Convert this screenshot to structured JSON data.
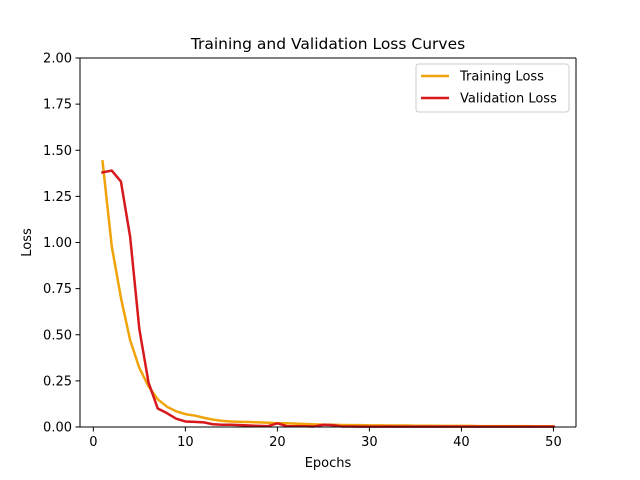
{
  "chart_data": {
    "type": "line",
    "title": "Training and Validation Loss Curves",
    "xlabel": "Epochs",
    "ylabel": "Loss",
    "xlim": [
      -1.45,
      52.45
    ],
    "ylim": [
      0,
      2.0
    ],
    "xticks": [
      0,
      10,
      20,
      30,
      40,
      50
    ],
    "xtick_labels": [
      "0",
      "10",
      "20",
      "30",
      "40",
      "50"
    ],
    "yticks": [
      0,
      0.25,
      0.5,
      0.75,
      1.0,
      1.25,
      1.5,
      1.75,
      2.0
    ],
    "ytick_labels": [
      "0.00",
      "0.25",
      "0.50",
      "0.75",
      "1.00",
      "1.25",
      "1.50",
      "1.75",
      "2.00"
    ],
    "grid": false,
    "legend_position": "top-right",
    "x": [
      1,
      2,
      3,
      4,
      5,
      6,
      7,
      8,
      9,
      10,
      11,
      12,
      13,
      14,
      15,
      16,
      17,
      18,
      19,
      20,
      21,
      22,
      23,
      24,
      25,
      26,
      27,
      28,
      29,
      30,
      31,
      32,
      33,
      34,
      35,
      36,
      37,
      38,
      39,
      40,
      41,
      42,
      43,
      44,
      45,
      46,
      47,
      48,
      49,
      50
    ],
    "series": [
      {
        "name": "Training Loss",
        "color": "#f0a30a",
        "values": [
          1.44,
          0.98,
          0.7,
          0.47,
          0.32,
          0.22,
          0.15,
          0.11,
          0.085,
          0.07,
          0.062,
          0.05,
          0.04,
          0.033,
          0.03,
          0.028,
          0.027,
          0.025,
          0.023,
          0.02,
          0.02,
          0.018,
          0.016,
          0.014,
          0.013,
          0.012,
          0.011,
          0.01,
          0.01,
          0.009,
          0.009,
          0.008,
          0.008,
          0.008,
          0.007,
          0.007,
          0.007,
          0.006,
          0.006,
          0.006,
          0.006,
          0.005,
          0.005,
          0.005,
          0.005,
          0.005,
          0.005,
          0.004,
          0.004,
          0.004
        ]
      },
      {
        "name": "Validation Loss",
        "color": "#d7191c",
        "values": [
          1.38,
          1.39,
          1.33,
          1.03,
          0.53,
          0.24,
          0.1,
          0.075,
          0.045,
          0.03,
          0.028,
          0.025,
          0.015,
          0.012,
          0.012,
          0.01,
          0.008,
          0.006,
          0.005,
          0.02,
          0.005,
          0.004,
          0.004,
          0.003,
          0.012,
          0.01,
          0.003,
          0.003,
          0.002,
          0.002,
          0.002,
          0.003,
          0.002,
          0.002,
          0.002,
          0.002,
          0.002,
          0.002,
          0.002,
          0.002,
          0.002,
          0.002,
          0.002,
          0.002,
          0.002,
          0.002,
          0.002,
          0.002,
          0.002,
          0.002
        ]
      }
    ]
  }
}
